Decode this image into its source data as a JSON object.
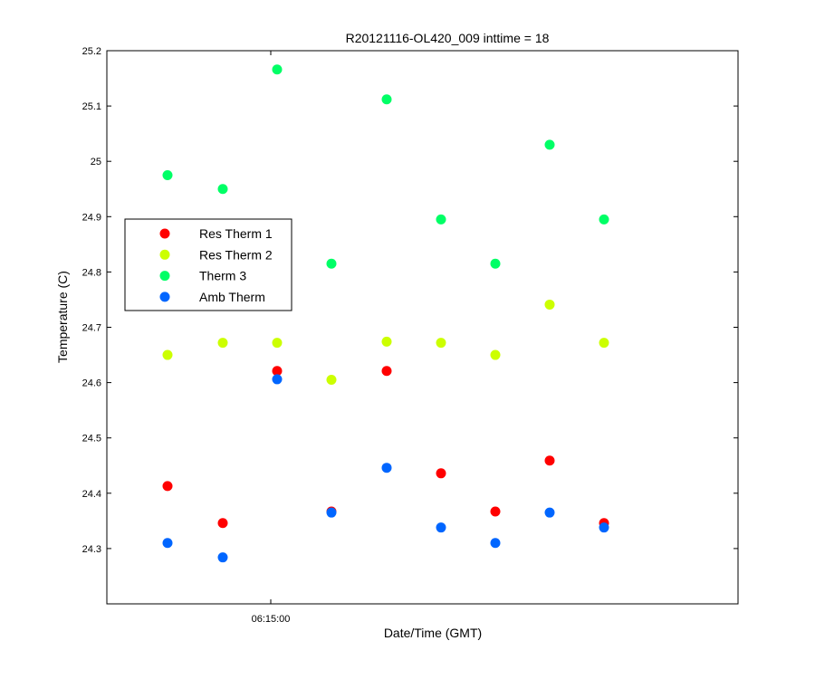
{
  "chart_data": {
    "type": "scatter",
    "title": "R20121116-OL420_009 inttime = 18",
    "xlabel": "Date/Time (GMT)",
    "ylabel": "Temperature (C)",
    "ylim": [
      24.2,
      25.2
    ],
    "yticks": [
      "24.3",
      "24.4",
      "24.5",
      "24.6",
      "24.7",
      "24.8",
      "24.9",
      "25",
      "25.1",
      "25.2"
    ],
    "xtick_labels": [
      "06:15:00"
    ],
    "grid": false,
    "legend_position": "left",
    "series": [
      {
        "name": "Res Therm 1",
        "color": "#ff0000",
        "values": [
          24.413,
          24.346,
          24.621,
          24.367,
          24.621,
          24.436,
          24.367,
          24.459,
          24.346
        ]
      },
      {
        "name": "Res Therm 2",
        "color": "#ccff00",
        "values": [
          24.65,
          24.672,
          24.672,
          24.605,
          24.674,
          24.672,
          24.65,
          24.741,
          24.672
        ]
      },
      {
        "name": "Therm 3",
        "color": "#00ff66",
        "values": [
          24.975,
          24.95,
          25.166,
          24.815,
          25.112,
          24.895,
          24.815,
          25.03,
          24.895
        ]
      },
      {
        "name": "Amb Therm",
        "color": "#0066ff",
        "values": [
          24.31,
          24.284,
          24.606,
          24.365,
          24.446,
          24.338,
          24.31,
          24.365,
          24.338
        ]
      }
    ]
  }
}
